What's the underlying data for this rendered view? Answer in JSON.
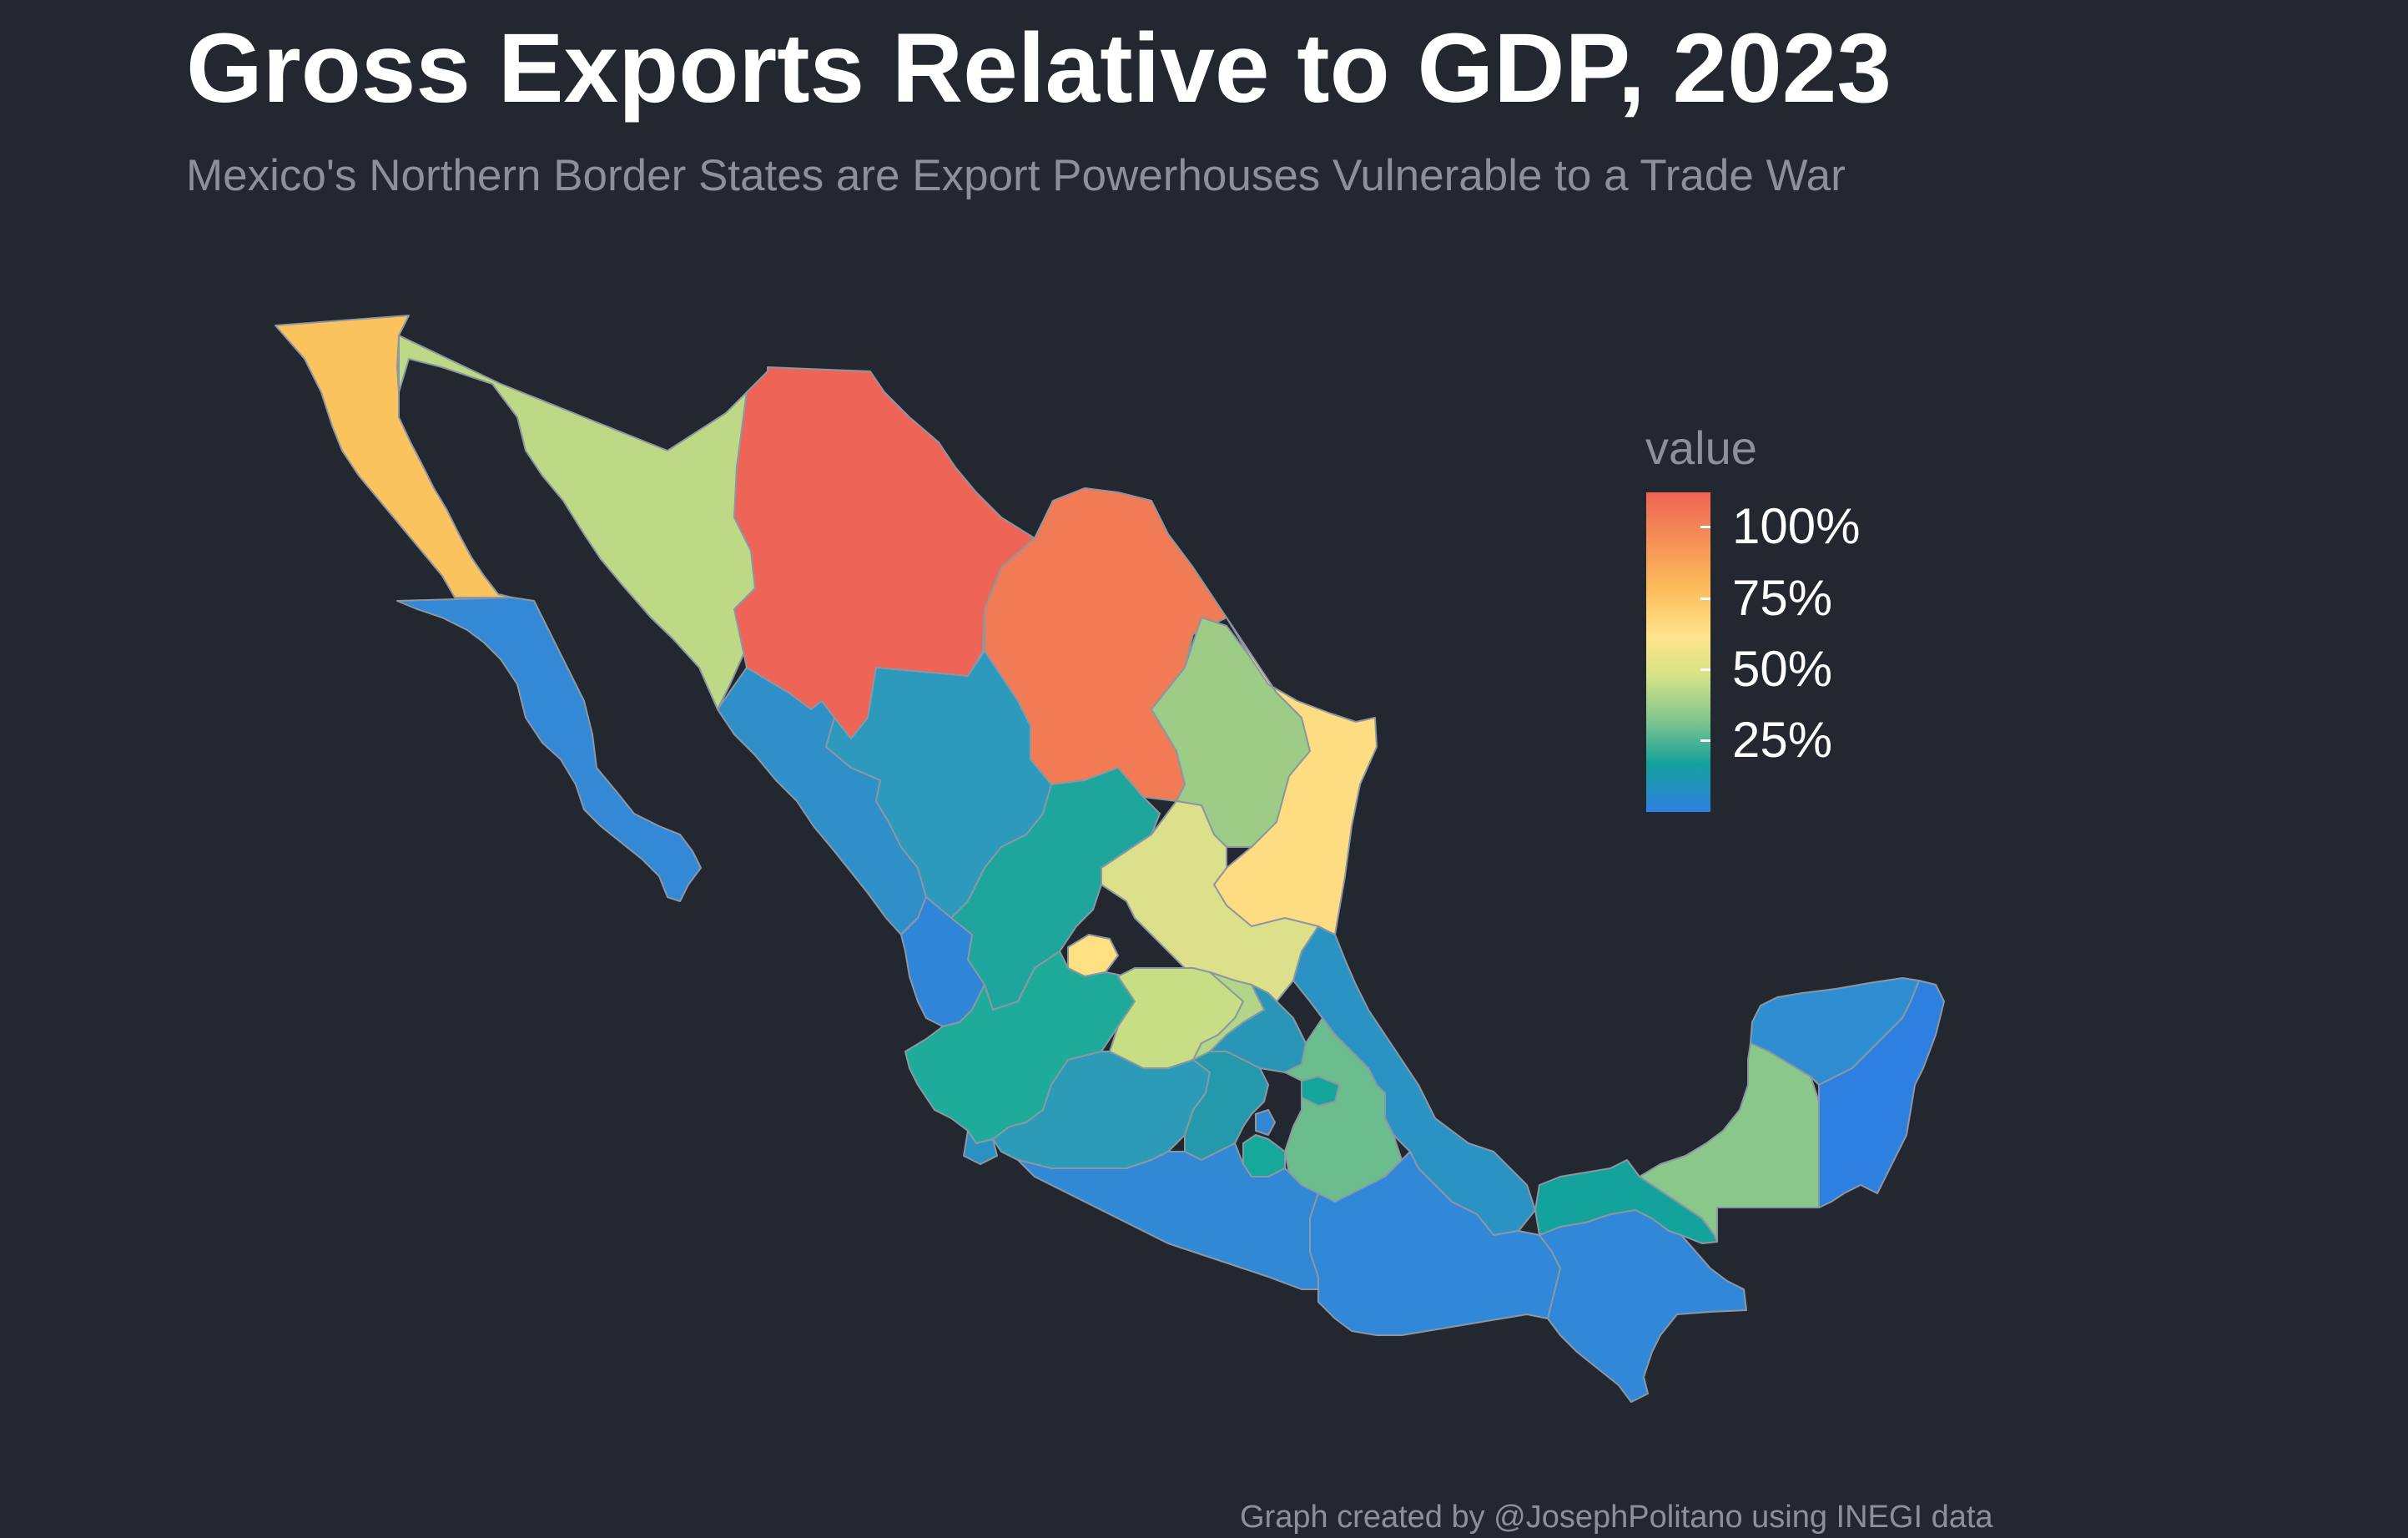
{
  "title": "Gross Exports Relative to GDP, 2023",
  "subtitle": "Mexico's Northern Border States are Export Powerhouses Vulnerable to a Trade War",
  "caption": "Graph created by @JosephPolitano using INEGI data",
  "legend": {
    "title": "value",
    "labels": [
      "100%",
      "75%",
      "50%",
      "25%"
    ],
    "colors": [
      "#ef6454",
      "#fbbc5a",
      "#fee38b",
      "#d9e387",
      "#7cc48e",
      "#13a19c",
      "#2f7fe0"
    ]
  },
  "colors": {
    "background": "#232730",
    "state_border": "#8c97a3"
  },
  "chart_data": {
    "type": "choropleth",
    "metric": "value",
    "scale_range": [
      0,
      1.1
    ],
    "states": [
      {
        "name": "Baja California",
        "value": 0.85,
        "color": "#fbc35e"
      },
      {
        "name": "Sonora",
        "value": 0.5,
        "color": "#bed986"
      },
      {
        "name": "Chihuahua",
        "value": 1.08,
        "color": "#ee6457"
      },
      {
        "name": "Coahuila",
        "value": 0.98,
        "color": "#f07b54"
      },
      {
        "name": "Nuevo León",
        "value": 0.42,
        "color": "#9ccc86"
      },
      {
        "name": "Tamaulipas",
        "value": 0.72,
        "color": "#fedd82"
      },
      {
        "name": "Baja California Sur",
        "value": 0.05,
        "color": "#3389d6"
      },
      {
        "name": "Sinaloa",
        "value": 0.08,
        "color": "#2f8fc8"
      },
      {
        "name": "Durango",
        "value": 0.1,
        "color": "#2d99bc"
      },
      {
        "name": "Zacatecas",
        "value": 0.22,
        "color": "#1ea59c"
      },
      {
        "name": "San Luis Potosí",
        "value": 0.6,
        "color": "#dde08a"
      },
      {
        "name": "Nayarit",
        "value": 0.04,
        "color": "#2f85d8"
      },
      {
        "name": "Aguascalientes",
        "value": 0.72,
        "color": "#fde082"
      },
      {
        "name": "Jalisco",
        "value": 0.22,
        "color": "#1fab9a"
      },
      {
        "name": "Guanajuato",
        "value": 0.55,
        "color": "#c8de85"
      },
      {
        "name": "Querétaro",
        "value": 0.48,
        "color": "#b3d587"
      },
      {
        "name": "Hidalgo",
        "value": 0.12,
        "color": "#2996b8"
      },
      {
        "name": "Veracruz",
        "value": 0.08,
        "color": "#2b92c4"
      },
      {
        "name": "Colima",
        "value": 0.08,
        "color": "#2a92c2"
      },
      {
        "name": "Michoacán",
        "value": 0.1,
        "color": "#2c9bb8"
      },
      {
        "name": "Estado de México",
        "value": 0.16,
        "color": "#2499ac"
      },
      {
        "name": "Ciudad de México",
        "value": 0.05,
        "color": "#3286d6"
      },
      {
        "name": "Morelos",
        "value": 0.22,
        "color": "#16a898"
      },
      {
        "name": "Tlaxcala",
        "value": 0.2,
        "color": "#14a59c"
      },
      {
        "name": "Puebla",
        "value": 0.38,
        "color": "#6cbd8e"
      },
      {
        "name": "Guerrero",
        "value": 0.05,
        "color": "#3189d6"
      },
      {
        "name": "Oaxaca",
        "value": 0.04,
        "color": "#3187d8"
      },
      {
        "name": "Chiapas",
        "value": 0.04,
        "color": "#3188d8"
      },
      {
        "name": "Tabasco",
        "value": 0.2,
        "color": "#13a39c"
      },
      {
        "name": "Campeche",
        "value": 0.4,
        "color": "#8ac78a"
      },
      {
        "name": "Yucatán",
        "value": 0.06,
        "color": "#2f8ed2"
      },
      {
        "name": "Quintana Roo",
        "value": 0.02,
        "color": "#2e80e0"
      }
    ]
  }
}
